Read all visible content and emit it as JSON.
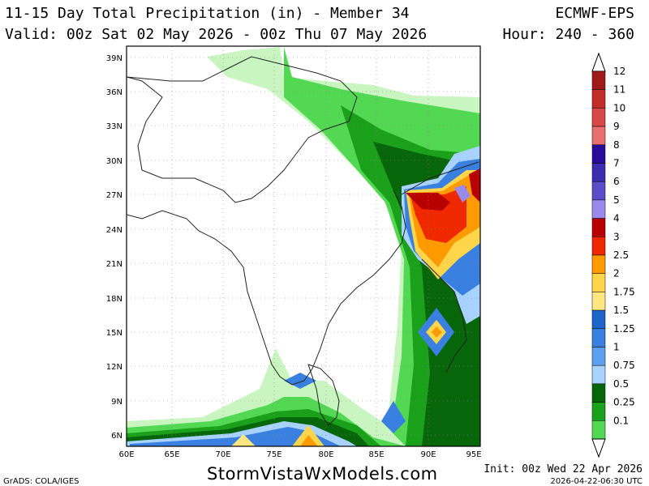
{
  "header": {
    "title": "11-15 Day Total Precipitation (in) - Member 34",
    "valid": "Valid: 00z Sat 02 May 2026 - 00z Thu 07 May 2026",
    "model": "ECMWF-EPS",
    "hour": "Hour: 240 - 360"
  },
  "axes": {
    "lon_labels": [
      "60E",
      "65E",
      "70E",
      "75E",
      "80E",
      "85E",
      "90E",
      "95E"
    ],
    "lat_labels": [
      "39N",
      "36N",
      "33N",
      "30N",
      "27N",
      "24N",
      "21N",
      "18N",
      "15N",
      "12N",
      "9N",
      "6N"
    ]
  },
  "legend": {
    "items": [
      {
        "label": "12",
        "color": "#a01a1a"
      },
      {
        "label": "11",
        "color": "#c42c2c"
      },
      {
        "label": "10",
        "color": "#d84848"
      },
      {
        "label": "9",
        "color": "#e87070"
      },
      {
        "label": "8",
        "color": "#2a0a98"
      },
      {
        "label": "7",
        "color": "#3c2cb0"
      },
      {
        "label": "6",
        "color": "#5c4cc8"
      },
      {
        "label": "5",
        "color": "#9a8aec"
      },
      {
        "label": "4",
        "color": "#b80000"
      },
      {
        "label": "3",
        "color": "#f02800"
      },
      {
        "label": "2.5",
        "color": "#ff9a00"
      },
      {
        "label": "2",
        "color": "#ffd54a"
      },
      {
        "label": "1.75",
        "color": "#ffe680"
      },
      {
        "label": "1.5",
        "color": "#1f64c8"
      },
      {
        "label": "1.25",
        "color": "#3a80e0"
      },
      {
        "label": "1",
        "color": "#5ca0f0"
      },
      {
        "label": "0.75",
        "color": "#a8d2ff"
      },
      {
        "label": "0.5",
        "color": "#07660a"
      },
      {
        "label": "0.25",
        "color": "#1aa01a"
      },
      {
        "label": "0.1",
        "color": "#52d852"
      }
    ]
  },
  "footer": {
    "credit": "GrADS: COLA/IGES",
    "site": "StormVistaWxModels.com",
    "init": "Init: 00z Wed 22 Apr 2026",
    "timestamp": "2026-04-22-06:30 UTC"
  }
}
